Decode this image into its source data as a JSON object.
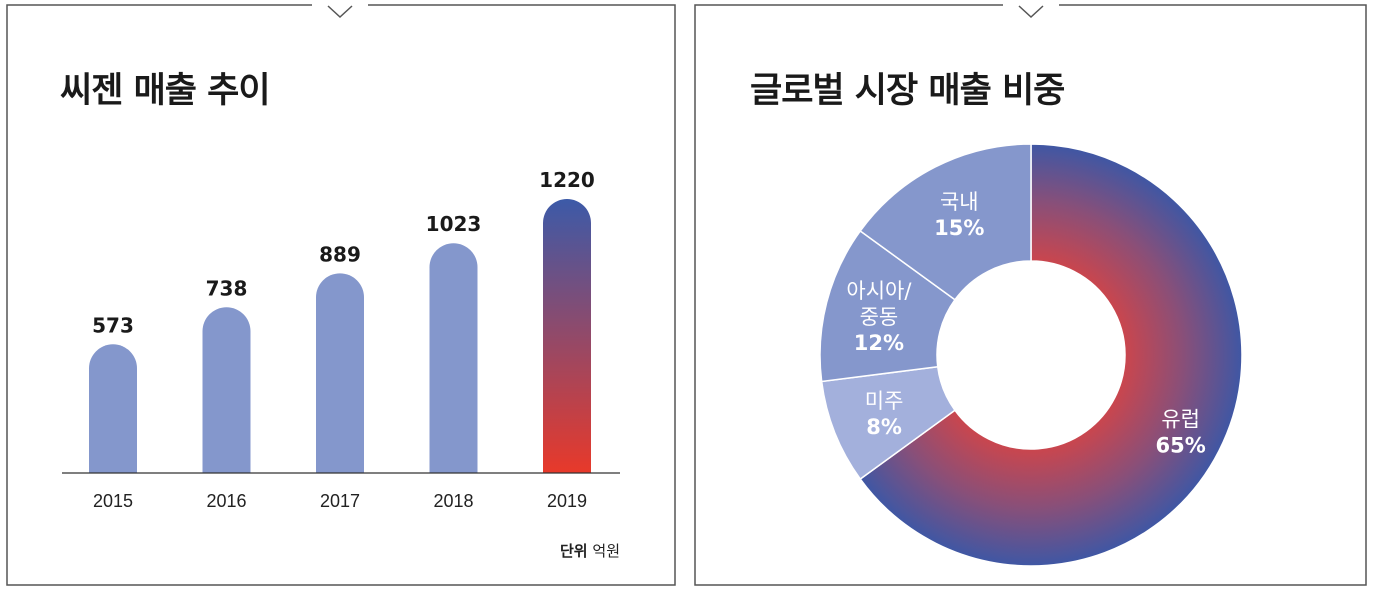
{
  "bar_panel": {
    "title": "씨젠 매출 추이",
    "unit_label": "단위",
    "unit_value": "억원"
  },
  "donut_panel": {
    "title": "글로벌 시장 매출 비중"
  },
  "colors": {
    "bar": "#8497cc",
    "highlight_top": "#3c5aa8",
    "highlight_bottom": "#e8392a",
    "donut_light": "#a3b0dc",
    "donut_mid": "#8597cc",
    "donut_main_red": "#c9464e",
    "donut_main_blue": "#3f57a4",
    "frame": "#555555"
  },
  "chart_data": [
    {
      "type": "bar",
      "title": "씨젠 매출 추이",
      "categories": [
        "2015",
        "2016",
        "2017",
        "2018",
        "2019"
      ],
      "values": [
        573,
        738,
        889,
        1023,
        1220
      ],
      "value_labels": [
        "573",
        "738",
        "889",
        "1023",
        "1220"
      ],
      "highlight": "2019",
      "ylim": [
        0,
        1220
      ],
      "unit": "억원",
      "grid": false
    },
    {
      "type": "pie",
      "title": "글로벌 시장 매출 비중",
      "donut": true,
      "slices": [
        {
          "label": "유럽",
          "value": 65,
          "pct_label": "65%"
        },
        {
          "label": "미주",
          "value": 8,
          "pct_label": "8%"
        },
        {
          "label": "아시아/\n중동",
          "value": 12,
          "pct_label": "12%"
        },
        {
          "label": "국내",
          "value": 15,
          "pct_label": "15%"
        }
      ]
    }
  ]
}
